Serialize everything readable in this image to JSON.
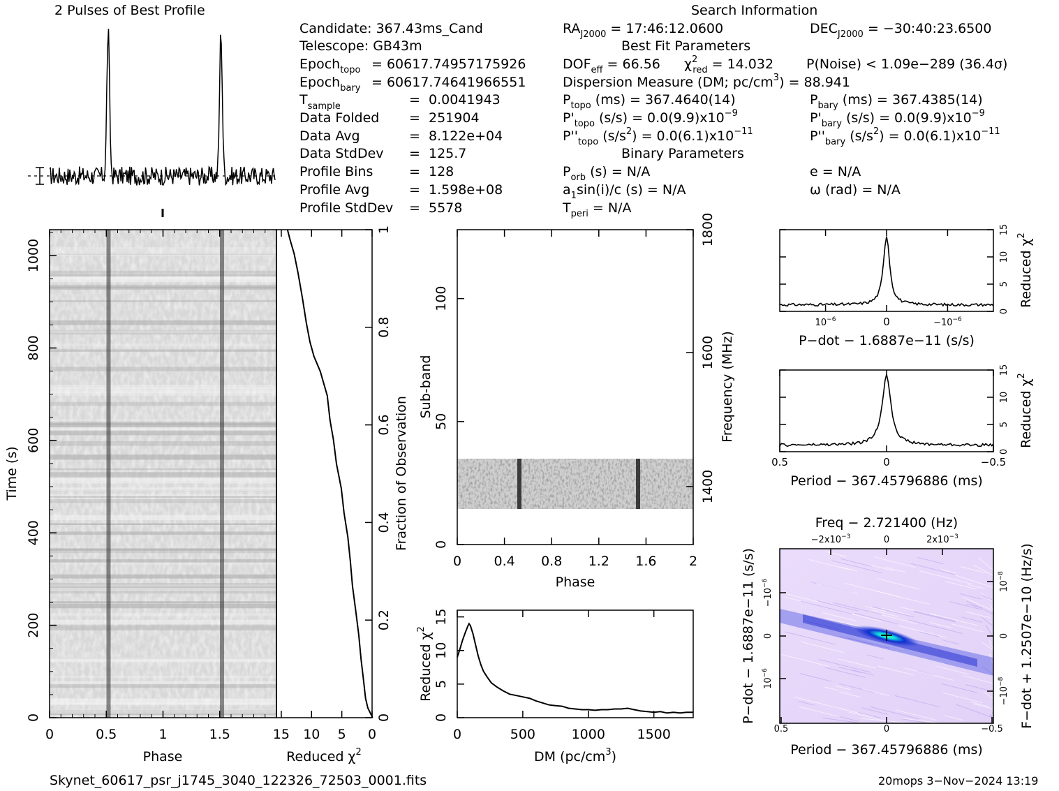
{
  "title": "2 Pulses of Best Profile",
  "search_info_title": "Search Information",
  "candidate": {
    "candidate": "Candidate:  367.43ms_Cand",
    "telescope": "Telescope:  GB43m",
    "epoch_topo": "60617.74957175926",
    "epoch_bary": "60617.74641966551",
    "t_sample": "0.0041943",
    "data_folded": "251904",
    "data_avg": "8.122e+04",
    "data_stddev": "125.7",
    "profile_bins": "128",
    "profile_avg": "1.598e+08",
    "profile_stddev": "5578"
  },
  "labels_left": {
    "epoch_topo": "Epoch",
    "epoch_bary": "Epoch",
    "t_sample": "T",
    "data_folded": "Data Folded",
    "data_avg": "Data Avg",
    "data_stddev": "Data StdDev",
    "profile_bins": "Profile Bins",
    "profile_avg": "Profile Avg",
    "profile_stddev": "Profile StdDev",
    "sub_topo": "topo",
    "sub_bary": "bary",
    "sub_sample": "sample"
  },
  "search": {
    "ra": "= 17:46:12.0600",
    "dec": "= −30:40:23.6500",
    "ra_label": "RA",
    "dec_label": "DEC",
    "j2000": "J2000",
    "best_fit_title": "Best Fit Parameters",
    "dof_label": "DOF",
    "dof_sub": "eff",
    "dof": "= 66.56",
    "chi2_label": "χ",
    "chi2_sup": "2",
    "chi2_sub": "red",
    "chi2": "= 14.032",
    "pnoise": "P(Noise) < 1.09e−289   (36.4σ)",
    "dm_text": "Dispersion Measure (DM; pc/cm",
    "dm_sup": "3",
    "dm_val": ") = 88.941",
    "p_label": "P",
    "p_topo_unit": "(ms) =  367.4640(14)",
    "p_bary_unit": "(ms) =  367.4385(14)",
    "pd_topo_unit": "(s/s) = 0.0(9.9)x10",
    "pd_bary_unit": "(s/s) = 0.0(9.9)x10",
    "pd_exp": "−9",
    "pdd_topo_unit_a": "(s/s",
    "pdd_bary_unit_a": "(s/s",
    "pdd_unit_sup": "2",
    "pdd_unit_b": ") = 0.0(6.1)x10",
    "pdd_exp": "−11",
    "binary_title": "Binary Parameters",
    "porb_label": "P",
    "porb_sub": "orb",
    "porb": "(s) = N/A",
    "a1": "a",
    "a1_sub": "1",
    "a1_rest": "sin(i)/c (s) = N/A",
    "tperi": "T",
    "tperi_sub": "peri",
    "tperi_val": "= N/A",
    "e": "e = N/A",
    "omega": "ω (rad) = N/A"
  },
  "footer": {
    "filename": "Skynet_60617_psr_j1745_3040_122326_72503_0001.fits",
    "stamp": "20mops   3−Nov−2024 13:19"
  },
  "chart_data": [
    {
      "type": "line",
      "id": "profile",
      "title": "2 Pulses of Best Profile",
      "x_range": [
        0,
        2
      ],
      "peaks": [
        0.52,
        1.52
      ],
      "description_values": {
        "baseline": 0.0,
        "peak_height": 1.0
      }
    },
    {
      "type": "heatmap",
      "id": "time-phase",
      "xlabel": "Phase",
      "ylabel": "Time (s)",
      "x_ticks": [
        0,
        0.5,
        1,
        1.5
      ],
      "x_tick_labels": [
        "0",
        "0.5",
        "1",
        "1.5"
      ],
      "y_ticks": [
        0,
        200,
        400,
        600,
        800,
        1000
      ],
      "y_tick_labels": [
        "0",
        "200",
        "400",
        "600",
        "800",
        "1000"
      ],
      "xlim": [
        0,
        2
      ],
      "ylim": [
        0,
        1056
      ]
    },
    {
      "type": "line",
      "id": "reduced-chi2-time",
      "xlabel": "Reduced χ",
      "xlabel_sup": "2",
      "ylabel": "Fraction of Observation",
      "x_ticks": [
        15,
        10,
        5,
        0
      ],
      "x_tick_labels": [
        "15",
        "10",
        "5",
        "0"
      ],
      "y_ticks": [
        0,
        0.2,
        0.4,
        0.6,
        0.8,
        1
      ],
      "y_tick_labels": [
        "0",
        "0.2",
        "0.4",
        "0.6",
        "0.8",
        "1"
      ],
      "xlim": [
        15.8,
        0
      ],
      "ylim": [
        0,
        1
      ],
      "points": [
        [
          0,
          0
        ],
        [
          0.6,
          0.02
        ],
        [
          1.0,
          0.04
        ],
        [
          1.4,
          0.08
        ],
        [
          1.8,
          0.12
        ],
        [
          2.2,
          0.17
        ],
        [
          2.7,
          0.22
        ],
        [
          3.2,
          0.27
        ],
        [
          3.6,
          0.32
        ],
        [
          4.1,
          0.37
        ],
        [
          4.6,
          0.42
        ],
        [
          5.2,
          0.47
        ],
        [
          5.8,
          0.52
        ],
        [
          6.3,
          0.57
        ],
        [
          6.9,
          0.61
        ],
        [
          7.5,
          0.66
        ],
        [
          8.5,
          0.71
        ],
        [
          9.5,
          0.74
        ],
        [
          10.3,
          0.77
        ],
        [
          10.8,
          0.81
        ],
        [
          11.4,
          0.86
        ],
        [
          12.1,
          0.91
        ],
        [
          12.9,
          0.95
        ],
        [
          13.6,
          0.98
        ],
        [
          14.0,
          1.0
        ]
      ]
    },
    {
      "type": "heatmap",
      "id": "subband-phase",
      "xlabel": "Phase",
      "ylabel": "Sub-band",
      "ylabel_right": "Frequency (MHz)",
      "x_ticks": [
        0,
        0.4,
        0.8,
        1.2,
        1.6,
        2
      ],
      "x_tick_labels": [
        "0",
        "0.4",
        "0.8",
        "1.2",
        "1.6",
        "2"
      ],
      "y_ticks": [
        0,
        50,
        100
      ],
      "y_tick_labels": [
        "0",
        "50",
        "100"
      ],
      "y_right_ticks": [
        1400,
        1600,
        1800
      ],
      "y_right_tick_labels": [
        "1400",
        "1600",
        "1800"
      ],
      "xlim": [
        0,
        2
      ],
      "ylim": [
        0,
        128
      ],
      "filled_band": [
        14,
        35
      ]
    },
    {
      "type": "line",
      "id": "dm-curve",
      "xlabel": "DM (pc/cm",
      "xlabel_sup": "3",
      "xlabel_end": ")",
      "ylabel": "Reduced χ",
      "ylabel_sup": "2",
      "x_ticks": [
        0,
        500,
        1000,
        1500
      ],
      "x_tick_labels": [
        "0",
        "500",
        "1000",
        "1500"
      ],
      "y_ticks": [
        0,
        5,
        10,
        15
      ],
      "y_tick_labels": [
        "0",
        "5",
        "10",
        "15"
      ],
      "xlim": [
        0,
        1800
      ],
      "ylim": [
        0,
        16
      ],
      "points": [
        [
          0,
          9.0
        ],
        [
          20,
          10.2
        ],
        [
          40,
          11.5
        ],
        [
          60,
          12.6
        ],
        [
          80,
          13.6
        ],
        [
          90,
          14.0
        ],
        [
          100,
          13.7
        ],
        [
          120,
          12.5
        ],
        [
          140,
          10.8
        ],
        [
          160,
          9.2
        ],
        [
          180,
          7.9
        ],
        [
          200,
          6.9
        ],
        [
          230,
          6.0
        ],
        [
          260,
          5.2
        ],
        [
          300,
          4.6
        ],
        [
          350,
          4.0
        ],
        [
          400,
          3.5
        ],
        [
          450,
          3.3
        ],
        [
          500,
          3.1
        ],
        [
          550,
          2.9
        ],
        [
          600,
          2.5
        ],
        [
          650,
          2.2
        ],
        [
          700,
          1.9
        ],
        [
          750,
          1.8
        ],
        [
          800,
          1.7
        ],
        [
          850,
          1.4
        ],
        [
          900,
          1.3
        ],
        [
          950,
          1.2
        ],
        [
          1000,
          1.2
        ],
        [
          1050,
          1.1
        ],
        [
          1100,
          1.2
        ],
        [
          1150,
          1.2
        ],
        [
          1200,
          1.3
        ],
        [
          1250,
          1.3
        ],
        [
          1300,
          1.4
        ],
        [
          1350,
          1.2
        ],
        [
          1400,
          1.0
        ],
        [
          1450,
          0.9
        ],
        [
          1500,
          0.8
        ],
        [
          1550,
          0.9
        ],
        [
          1600,
          0.7
        ],
        [
          1650,
          0.8
        ],
        [
          1700,
          0.7
        ],
        [
          1750,
          0.8
        ],
        [
          1800,
          0.8
        ]
      ]
    },
    {
      "type": "line",
      "id": "pdot-curve",
      "xlabel": "P−dot − 1.6887e−11 (s/s)",
      "ylabel": "Reduced χ",
      "ylabel_sup": "2",
      "x_ticks": [
        -0.6,
        0,
        0.6
      ],
      "x_tick_labels": [
        "10",
        "0",
        "−10"
      ],
      "x_tick_exp": "−6",
      "y_ticks": [
        0,
        5,
        10,
        15
      ],
      "y_tick_labels": [
        "0",
        "5",
        "10",
        "15"
      ],
      "xlim": [
        -1.05,
        1.05
      ],
      "ylim": [
        0,
        15
      ],
      "peak": 14.0
    },
    {
      "type": "line",
      "id": "period-curve",
      "xlabel": "Period − 367.45796886 (ms)",
      "ylabel": "Reduced χ",
      "ylabel_sup": "2",
      "x_ticks": [
        0.5,
        0,
        -0.5
      ],
      "x_tick_labels": [
        "0.5",
        "0",
        "−0.5"
      ],
      "y_ticks": [
        0,
        5,
        10,
        15
      ],
      "y_tick_labels": [
        "0",
        "5",
        "10",
        "15"
      ],
      "xlim": [
        0.5,
        -0.5
      ],
      "ylim": [
        0,
        15
      ],
      "peak": 14.0
    },
    {
      "type": "heatmap",
      "id": "p-pdot",
      "title": "Freq − 2.721400 (Hz)",
      "xlabel": "Period − 367.45796886 (ms)",
      "ylabel": "P−dot − 1.6887e−11 (s/s)",
      "ylabel_right": "F−dot + 1.2507e−10 (Hz/s)",
      "x_ticks": [
        0.5,
        0,
        -0.5
      ],
      "x_tick_labels": [
        "0.5",
        "0",
        "−0.5"
      ],
      "top_tick_labels": [
        "−2x10",
        "0",
        "2x10"
      ],
      "top_tick_exp": "−3",
      "left_tick_labels": [
        "−10",
        "0",
        "10"
      ],
      "left_tick_exp": "−6",
      "right_tick_labels": [
        "10",
        "0",
        "−10"
      ],
      "right_tick_exp": "−8",
      "xlim": [
        0.5,
        -0.5
      ],
      "ylim": [
        -1,
        1
      ]
    }
  ]
}
